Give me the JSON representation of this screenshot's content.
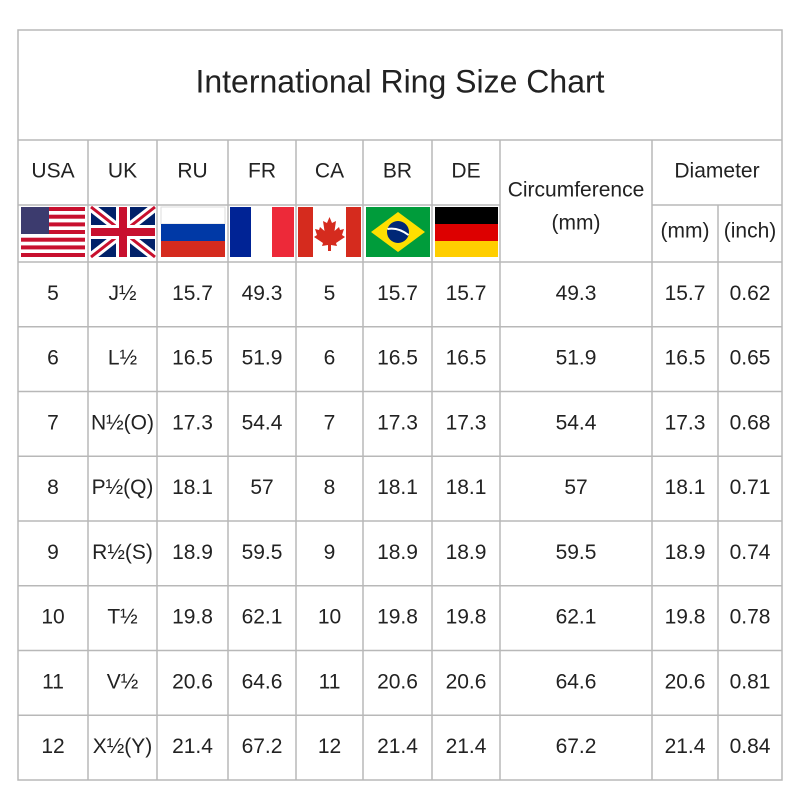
{
  "title": "International Ring Size Chart",
  "columns": [
    "USA",
    "UK",
    "RU",
    "FR",
    "CA",
    "BR",
    "DE"
  ],
  "circumference": {
    "label": "Circumference",
    "unit": "(mm)"
  },
  "diameter": {
    "label": "Diameter",
    "units": [
      "(mm)",
      "(inch)"
    ]
  },
  "rows": [
    [
      "5",
      "J½",
      "15.7",
      "49.3",
      "5",
      "15.7",
      "15.7",
      "49.3",
      "15.7",
      "0.62"
    ],
    [
      "6",
      "L½",
      "16.5",
      "51.9",
      "6",
      "16.5",
      "16.5",
      "51.9",
      "16.5",
      "0.65"
    ],
    [
      "7",
      "N½(O)",
      "17.3",
      "54.4",
      "7",
      "17.3",
      "17.3",
      "54.4",
      "17.3",
      "0.68"
    ],
    [
      "8",
      "P½(Q)",
      "18.1",
      "57",
      "8",
      "18.1",
      "18.1",
      "57",
      "18.1",
      "0.71"
    ],
    [
      "9",
      "R½(S)",
      "18.9",
      "59.5",
      "9",
      "18.9",
      "18.9",
      "59.5",
      "18.9",
      "0.74"
    ],
    [
      "10",
      "T½",
      "19.8",
      "62.1",
      "10",
      "19.8",
      "19.8",
      "62.1",
      "19.8",
      "0.78"
    ],
    [
      "11",
      "V½",
      "20.6",
      "64.6",
      "11",
      "20.6",
      "20.6",
      "64.6",
      "20.6",
      "0.81"
    ],
    [
      "12",
      "X½(Y)",
      "21.4",
      "67.2",
      "12",
      "21.4",
      "21.4",
      "67.2",
      "21.4",
      "0.84"
    ]
  ]
}
